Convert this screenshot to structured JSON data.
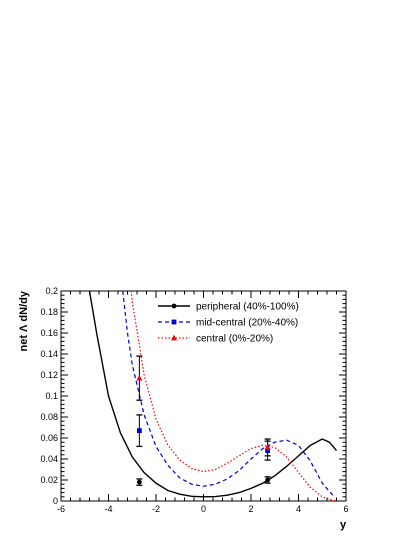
{
  "chart_data": {
    "type": "line",
    "xlabel": "y",
    "ylabel": "net Λ dN/dy",
    "xlim": [
      -6,
      6
    ],
    "ylim": [
      0,
      0.2
    ],
    "x_ticks": [
      -6,
      -4,
      -2,
      0,
      2,
      4,
      6
    ],
    "y_ticks": [
      0,
      0.02,
      0.04,
      0.06,
      0.08,
      0.1,
      0.12,
      0.14,
      0.16,
      0.18,
      0.2
    ],
    "grid": false,
    "legend_position": "top-right",
    "series": [
      {
        "name": "peripheral (40%-100%)",
        "color": "#000000",
        "line_style": "solid",
        "marker": "circle",
        "curve_x": [
          -4.8,
          -4.5,
          -4.0,
          -3.5,
          -3.0,
          -2.5,
          -2.0,
          -1.5,
          -1.0,
          -0.5,
          0.0,
          0.5,
          1.0,
          1.5,
          2.0,
          2.5,
          3.0,
          3.5,
          4.0,
          4.5,
          5.0,
          5.3,
          5.6
        ],
        "curve_y": [
          0.2,
          0.16,
          0.1,
          0.065,
          0.042,
          0.027,
          0.017,
          0.01,
          0.0065,
          0.0045,
          0.004,
          0.0042,
          0.0055,
          0.008,
          0.012,
          0.017,
          0.024,
          0.033,
          0.043,
          0.053,
          0.059,
          0.056,
          0.048
        ],
        "points": [
          {
            "x": -2.7,
            "y": 0.018,
            "err": 0.003
          },
          {
            "x": 2.7,
            "y": 0.02,
            "err": 0.003
          }
        ]
      },
      {
        "name": "mid-central (20%-40%)",
        "color": "#0000cc",
        "line_style": "dashed",
        "marker": "square",
        "curve_x": [
          -3.4,
          -3.2,
          -3.0,
          -2.5,
          -2.0,
          -1.5,
          -1.0,
          -0.5,
          0.0,
          0.5,
          1.0,
          1.5,
          2.0,
          2.5,
          3.0,
          3.5,
          4.0,
          4.5,
          5.0,
          5.5
        ],
        "curve_y": [
          0.2,
          0.16,
          0.13,
          0.082,
          0.052,
          0.034,
          0.022,
          0.016,
          0.014,
          0.016,
          0.021,
          0.029,
          0.04,
          0.05,
          0.056,
          0.058,
          0.053,
          0.038,
          0.017,
          0.004
        ],
        "points": [
          {
            "x": -2.7,
            "y": 0.067,
            "err": 0.015
          },
          {
            "x": 2.7,
            "y": 0.048,
            "err": 0.009
          }
        ]
      },
      {
        "name": "central (0%-20%)",
        "color": "#ff0000",
        "line_style": "dotted",
        "marker": "triangle",
        "curve_x": [
          -3.05,
          -3.0,
          -2.5,
          -2.0,
          -1.5,
          -1.0,
          -0.5,
          0.0,
          0.5,
          1.0,
          1.5,
          2.0,
          2.5,
          3.0,
          3.5,
          4.0,
          4.5,
          5.0,
          5.4,
          5.6
        ],
        "curve_y": [
          0.2,
          0.19,
          0.12,
          0.078,
          0.053,
          0.039,
          0.031,
          0.028,
          0.03,
          0.036,
          0.043,
          0.05,
          0.053,
          0.051,
          0.042,
          0.027,
          0.013,
          0.004,
          0.001,
          0.0
        ],
        "points": [
          {
            "x": -2.7,
            "y": 0.117,
            "err": 0.021
          },
          {
            "x": 2.7,
            "y": 0.051,
            "err": 0.008
          }
        ]
      }
    ]
  }
}
